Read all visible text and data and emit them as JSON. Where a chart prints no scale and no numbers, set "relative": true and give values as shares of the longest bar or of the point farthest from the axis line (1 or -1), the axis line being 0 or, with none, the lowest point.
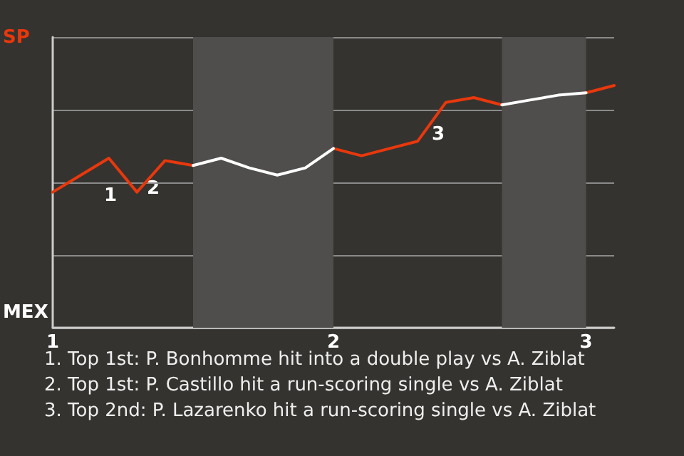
{
  "chart_data": {
    "type": "line",
    "relative": true,
    "categories": [
      "1",
      null,
      null,
      null,
      null,
      null,
      null,
      null,
      null,
      null,
      "2",
      null,
      null,
      null,
      null,
      null,
      null,
      null,
      null,
      "3",
      null
    ],
    "series": [
      {
        "color": "#e8380d",
        "values": [
          0.56,
          0.63,
          0.7,
          0.56,
          0.69,
          0.67,
          null,
          null,
          null,
          null,
          0.74,
          0.71,
          0.74,
          0.77,
          0.93,
          0.95,
          0.92,
          null,
          null,
          0.97,
          1
        ]
      },
      {
        "color": "#ffffff",
        "values": [
          null,
          null,
          null,
          null,
          null,
          0.67,
          0.7,
          0.66,
          0.63,
          0.66,
          0.74,
          null,
          null,
          null,
          null,
          null,
          0.92,
          0.94,
          0.96,
          0.97,
          null
        ]
      }
    ],
    "grid": "y",
    "marker": "none",
    "line_style": "solid",
    "annotations": [
      "SP",
      "MEX",
      "1",
      "2",
      "3",
      "1. Top 1st: P. Bonhomme hit into a double play vs A. Ziblat",
      "2. Top 1st: P. Castillo hit a run-scoring single vs A. Ziblat",
      "3. Top 2nd: P. Lazarenko hit a run-scoring single vs A. Ziblat"
    ]
  }
}
